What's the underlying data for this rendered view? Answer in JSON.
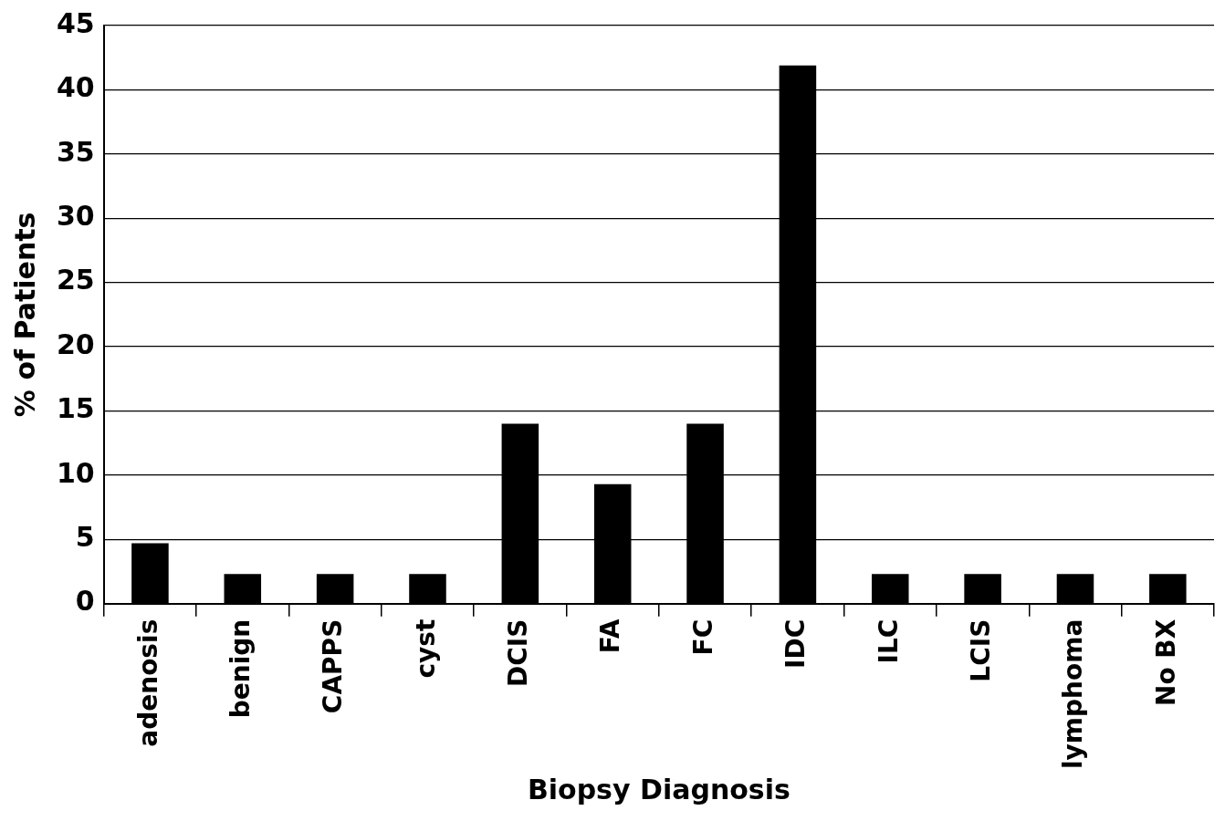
{
  "chart_data": {
    "type": "bar",
    "xlabel": "Biopsy Diagnosis",
    "ylabel": "% of Patients",
    "categories": [
      "adenosis",
      "benign",
      "CAPPS",
      "cyst",
      "DCIS",
      "FA",
      "FC",
      "IDC",
      "ILC",
      "LCIS",
      "lymphoma",
      "No BX"
    ],
    "values": [
      4.7,
      2.3,
      2.3,
      2.3,
      14.0,
      9.3,
      14.0,
      41.9,
      2.3,
      2.3,
      2.3,
      2.3
    ],
    "color": "#000000",
    "ylim": [
      0,
      45
    ],
    "yticks": [
      0,
      5,
      10,
      15,
      20,
      25,
      30,
      35,
      40,
      45
    ],
    "grid": "y",
    "legend": false
  }
}
